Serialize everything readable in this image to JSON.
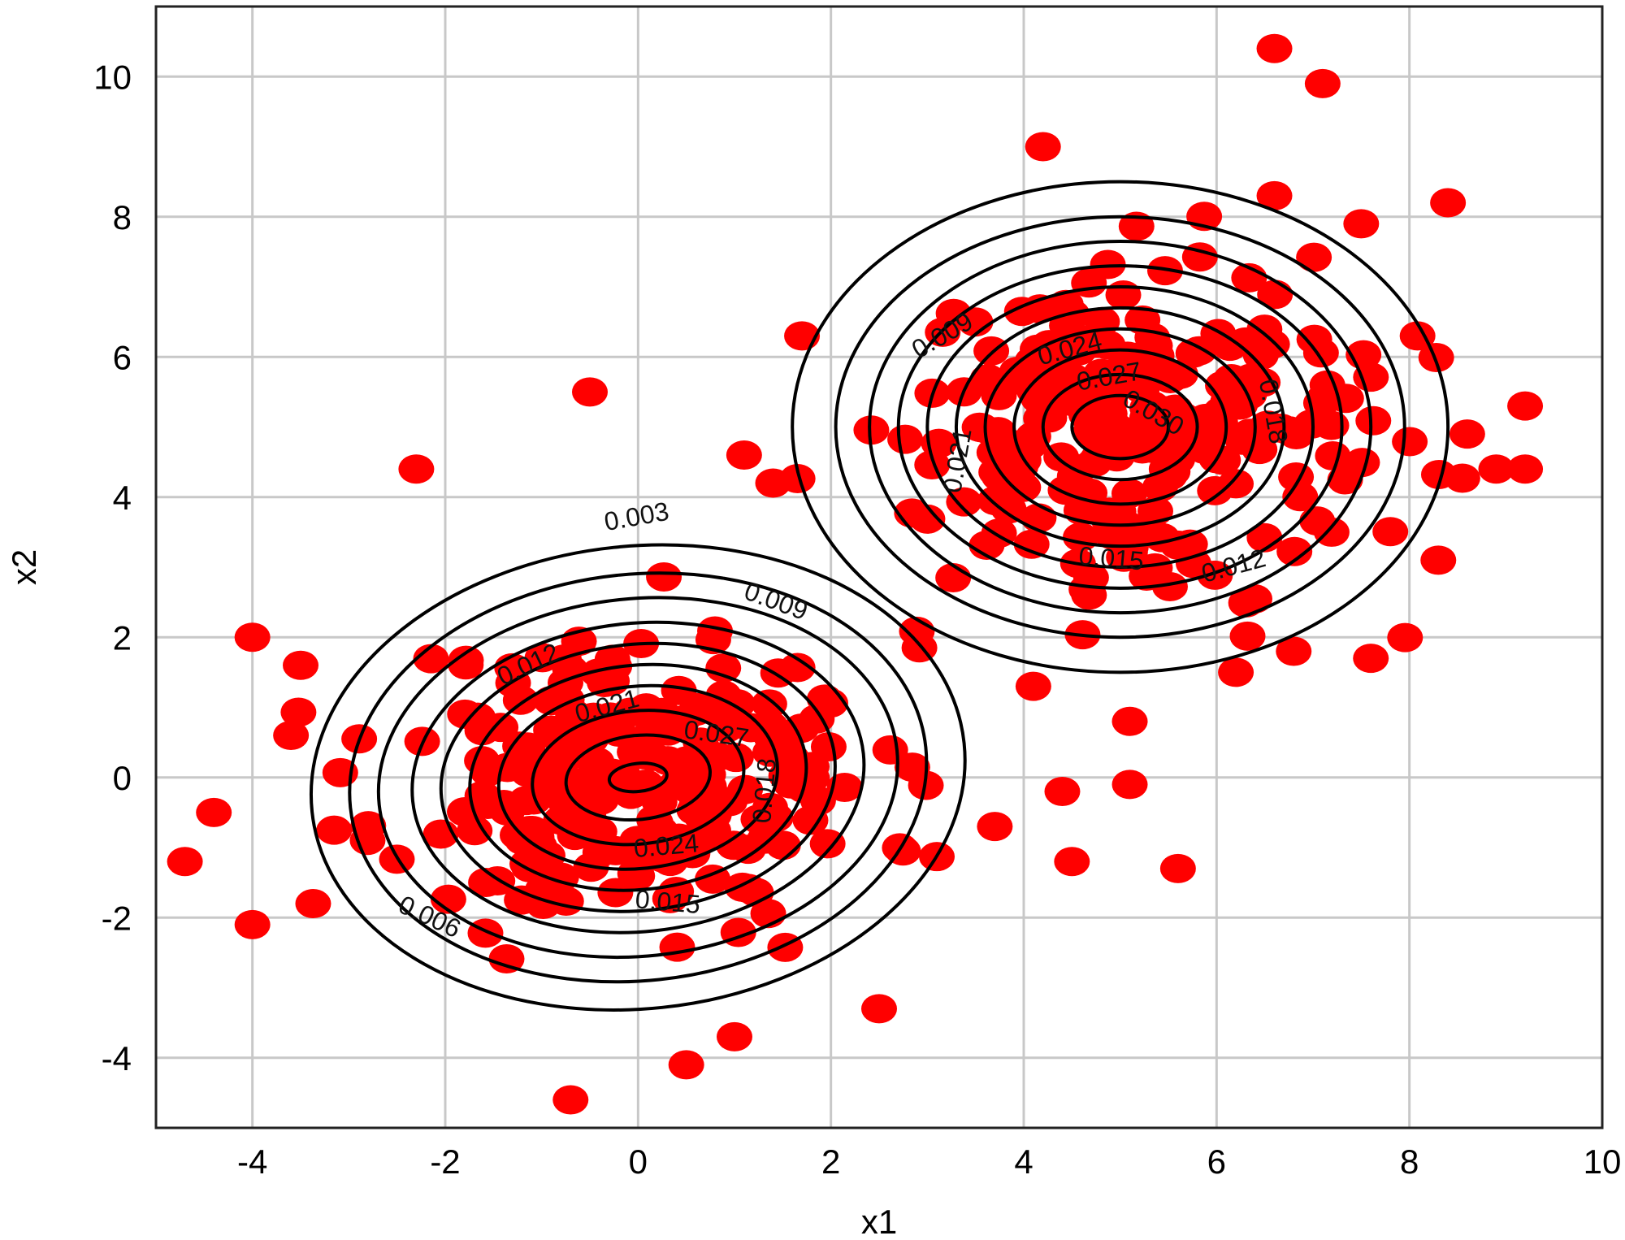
{
  "chart_data": {
    "type": "scatter",
    "xlabel": "x1",
    "ylabel": "x2",
    "xlim": [
      -5,
      10
    ],
    "ylim": [
      -5,
      11
    ],
    "x_ticks": [
      -4,
      -2,
      0,
      2,
      4,
      6,
      8,
      10
    ],
    "y_ticks": [
      -4,
      -2,
      0,
      2,
      4,
      6,
      8,
      10
    ],
    "x_tick_labels": [
      "-4",
      "-2",
      "0",
      "2",
      "4",
      "6",
      "8",
      "10"
    ],
    "y_tick_labels": [
      "-4",
      "-2",
      "0",
      "2",
      "4",
      "6",
      "8",
      "10"
    ],
    "grid": true,
    "colors": {
      "points": "#ff0000",
      "contours": "#000000",
      "grid": "#c8c8c8"
    },
    "clusters": [
      {
        "center": [
          0,
          0
        ],
        "spread": [
          1.25,
          1.05
        ],
        "count": 230,
        "seed": 11
      },
      {
        "center": [
          5,
          5
        ],
        "spread": [
          1.25,
          1.15
        ],
        "count": 230,
        "seed": 29
      }
    ],
    "points": [
      [
        -4.0,
        2.0
      ],
      [
        -3.5,
        1.6
      ],
      [
        -3.6,
        0.6
      ],
      [
        -4.4,
        -0.5
      ],
      [
        -4.7,
        -1.2
      ],
      [
        -4.0,
        -2.1
      ],
      [
        -2.3,
        4.4
      ],
      [
        -0.5,
        5.5
      ],
      [
        -0.7,
        -4.6
      ],
      [
        0.5,
        -4.1
      ],
      [
        1.0,
        -3.7
      ],
      [
        2.5,
        -3.3
      ],
      [
        1.1,
        4.6
      ],
      [
        1.4,
        4.2
      ],
      [
        1.7,
        6.3
      ],
      [
        6.6,
        10.4
      ],
      [
        7.1,
        9.9
      ],
      [
        4.2,
        9.0
      ],
      [
        8.4,
        8.2
      ],
      [
        6.6,
        8.3
      ],
      [
        7.5,
        7.9
      ],
      [
        9.2,
        5.3
      ],
      [
        9.2,
        4.4
      ],
      [
        8.9,
        4.4
      ],
      [
        8.6,
        4.9
      ],
      [
        8.3,
        3.1
      ],
      [
        4.5,
        -1.2
      ],
      [
        5.6,
        -1.3
      ],
      [
        4.4,
        -0.2
      ],
      [
        5.1,
        -0.1
      ],
      [
        3.7,
        -0.7
      ],
      [
        5.1,
        0.8
      ],
      [
        7.6,
        1.7
      ],
      [
        6.8,
        1.8
      ],
      [
        6.2,
        1.5
      ],
      [
        4.1,
        1.3
      ]
    ],
    "contours": [
      {
        "cluster": 0,
        "level": 0.003,
        "rx": 3.4,
        "ry": 3.3
      },
      {
        "cluster": 0,
        "level": 0.006,
        "rx": 3.0,
        "ry": 2.9
      },
      {
        "cluster": 0,
        "level": 0.009,
        "rx": 2.7,
        "ry": 2.55
      },
      {
        "cluster": 0,
        "level": 0.012,
        "rx": 2.35,
        "ry": 2.2
      },
      {
        "cluster": 0,
        "level": 0.015,
        "rx": 2.05,
        "ry": 1.9
      },
      {
        "cluster": 0,
        "level": 0.018,
        "rx": 1.75,
        "ry": 1.6
      },
      {
        "cluster": 0,
        "level": 0.021,
        "rx": 1.45,
        "ry": 1.3
      },
      {
        "cluster": 0,
        "level": 0.024,
        "rx": 1.1,
        "ry": 0.95
      },
      {
        "cluster": 0,
        "level": 0.027,
        "rx": 0.75,
        "ry": 0.6
      },
      {
        "cluster": 0,
        "level": 0.03,
        "rx": 0.3,
        "ry": 0.2
      },
      {
        "cluster": 1,
        "level": 0.003,
        "rx": 3.4,
        "ry": 3.5
      },
      {
        "cluster": 1,
        "level": 0.006,
        "rx": 2.95,
        "ry": 3.0
      },
      {
        "cluster": 1,
        "level": 0.009,
        "rx": 2.6,
        "ry": 2.65
      },
      {
        "cluster": 1,
        "level": 0.012,
        "rx": 2.3,
        "ry": 2.3
      },
      {
        "cluster": 1,
        "level": 0.015,
        "rx": 2.0,
        "ry": 2.0
      },
      {
        "cluster": 1,
        "level": 0.018,
        "rx": 1.7,
        "ry": 1.7
      },
      {
        "cluster": 1,
        "level": 0.021,
        "rx": 1.4,
        "ry": 1.4
      },
      {
        "cluster": 1,
        "level": 0.024,
        "rx": 1.1,
        "ry": 1.1
      },
      {
        "cluster": 1,
        "level": 0.027,
        "rx": 0.8,
        "ry": 0.75
      },
      {
        "cluster": 1,
        "level": 0.03,
        "rx": 0.5,
        "ry": 0.45
      }
    ],
    "contour_labels": [
      {
        "text": "0.003",
        "x": 0.0,
        "y": 3.6,
        "angle": -10
      },
      {
        "text": "0.009",
        "x": 1.4,
        "y": 2.4,
        "angle": 20
      },
      {
        "text": "0.012",
        "x": -1.1,
        "y": 1.5,
        "angle": -25
      },
      {
        "text": "0.021",
        "x": -0.3,
        "y": 0.9,
        "angle": -15
      },
      {
        "text": "0.027",
        "x": 0.8,
        "y": 0.5,
        "angle": 8
      },
      {
        "text": "0.018",
        "x": 1.4,
        "y": -0.2,
        "angle": -85
      },
      {
        "text": "0.024",
        "x": 0.3,
        "y": -1.1,
        "angle": -5
      },
      {
        "text": "0.015",
        "x": 0.3,
        "y": -1.9,
        "angle": 5
      },
      {
        "text": "0.006",
        "x": -2.2,
        "y": -2.1,
        "angle": 25
      },
      {
        "text": "0.009",
        "x": 3.2,
        "y": 6.2,
        "angle": -30
      },
      {
        "text": "0.024",
        "x": 4.5,
        "y": 6.0,
        "angle": -15
      },
      {
        "text": "0.027",
        "x": 4.9,
        "y": 5.6,
        "angle": -10
      },
      {
        "text": "0.030",
        "x": 5.3,
        "y": 5.1,
        "angle": 30
      },
      {
        "text": "0.021",
        "x": 3.4,
        "y": 4.5,
        "angle": -80
      },
      {
        "text": "0.018",
        "x": 6.5,
        "y": 5.2,
        "angle": 80
      },
      {
        "text": "0.015",
        "x": 4.9,
        "y": 3.0,
        "angle": 5
      },
      {
        "text": "0.012",
        "x": 6.2,
        "y": 2.9,
        "angle": -15
      }
    ]
  }
}
